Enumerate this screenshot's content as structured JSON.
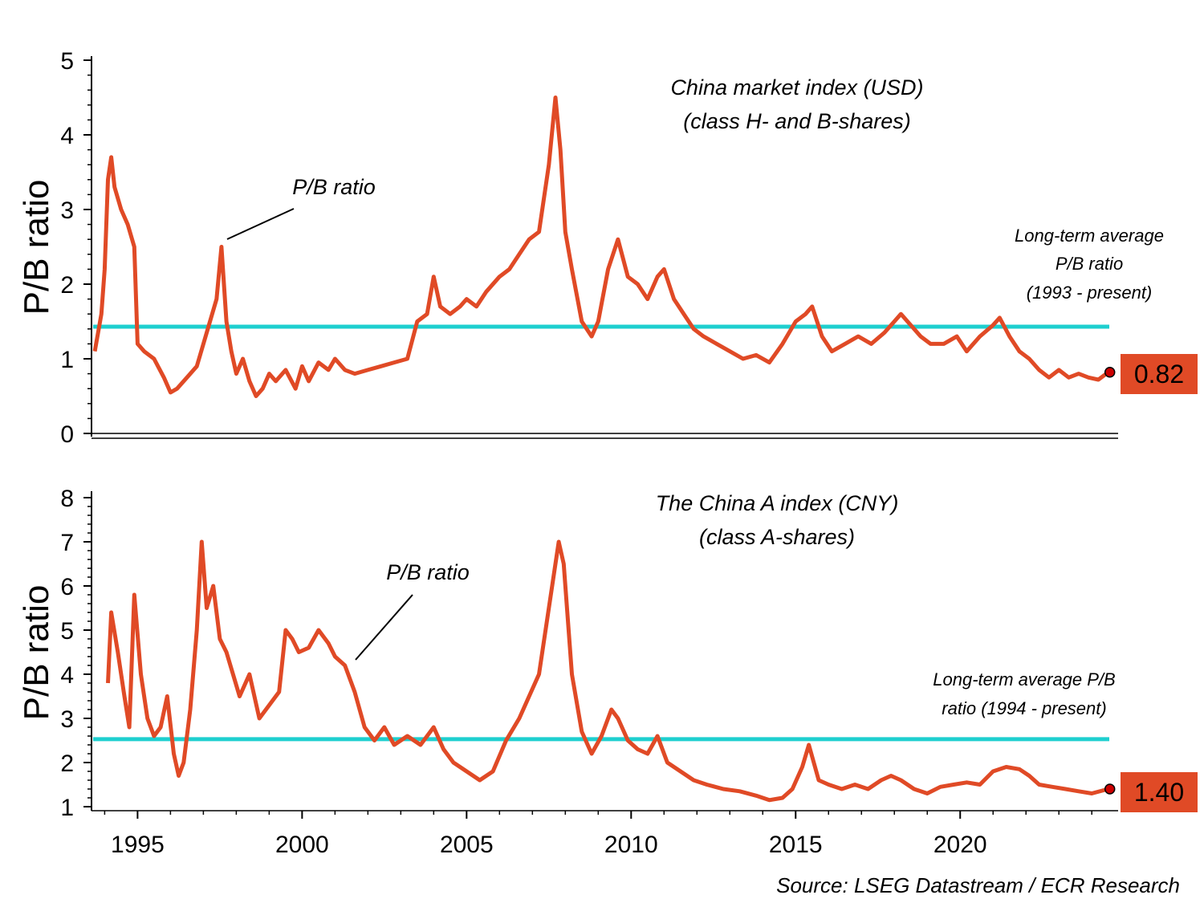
{
  "colors": {
    "series": "#e04a26",
    "average": "#1ecfcf",
    "axis": "#000000",
    "marker": "#cc0000"
  },
  "source": "Source: LSEG Datastream / ECR Research",
  "chart_data": [
    {
      "type": "line",
      "title_lines": [
        "China market index (USD)",
        "(class H- and B-shares)"
      ],
      "ylabel": "P/B ratio",
      "ylim": [
        0,
        5
      ],
      "yticks": [
        "0",
        "1",
        "2",
        "3",
        "4",
        "5"
      ],
      "xlim": [
        1993.6,
        2024.8
      ],
      "xticks": [
        "1995",
        "2000",
        "2005",
        "2010",
        "2015",
        "2020"
      ],
      "series": [
        {
          "name": "P/B ratio",
          "x": [
            1993.7,
            1993.9,
            1994.0,
            1994.1,
            1994.2,
            1994.3,
            1994.5,
            1994.7,
            1994.9,
            1995.0,
            1995.2,
            1995.5,
            1995.8,
            1996.0,
            1996.2,
            1996.5,
            1996.8,
            1997.0,
            1997.2,
            1997.4,
            1997.55,
            1997.7,
            1997.85,
            1998.0,
            1998.2,
            1998.4,
            1998.6,
            1998.8,
            1999.0,
            1999.2,
            1999.5,
            1999.8,
            2000.0,
            2000.2,
            2000.5,
            2000.8,
            2001.0,
            2001.3,
            2001.6,
            2002.0,
            2002.4,
            2002.8,
            2003.2,
            2003.5,
            2003.8,
            2004.0,
            2004.2,
            2004.5,
            2004.8,
            2005.0,
            2005.3,
            2005.6,
            2006.0,
            2006.3,
            2006.6,
            2006.9,
            2007.2,
            2007.5,
            2007.7,
            2007.85,
            2008.0,
            2008.2,
            2008.5,
            2008.8,
            2009.0,
            2009.3,
            2009.6,
            2009.9,
            2010.2,
            2010.5,
            2010.8,
            2011.0,
            2011.3,
            2011.6,
            2011.9,
            2012.2,
            2012.6,
            2013.0,
            2013.4,
            2013.8,
            2014.2,
            2014.6,
            2015.0,
            2015.3,
            2015.5,
            2015.8,
            2016.1,
            2016.5,
            2016.9,
            2017.3,
            2017.7,
            2018.0,
            2018.2,
            2018.5,
            2018.8,
            2019.1,
            2019.5,
            2019.9,
            2020.2,
            2020.6,
            2021.0,
            2021.2,
            2021.5,
            2021.8,
            2022.1,
            2022.4,
            2022.7,
            2023.0,
            2023.3,
            2023.6,
            2023.9,
            2024.2,
            2024.5
          ],
          "y": [
            1.1,
            1.6,
            2.2,
            3.4,
            3.7,
            3.3,
            3.0,
            2.8,
            2.5,
            1.2,
            1.1,
            1.0,
            0.75,
            0.55,
            0.6,
            0.75,
            0.9,
            1.2,
            1.5,
            1.8,
            2.5,
            1.5,
            1.1,
            0.8,
            1.0,
            0.7,
            0.5,
            0.6,
            0.8,
            0.7,
            0.85,
            0.6,
            0.9,
            0.7,
            0.95,
            0.85,
            1.0,
            0.85,
            0.8,
            0.85,
            0.9,
            0.95,
            1.0,
            1.5,
            1.6,
            2.1,
            1.7,
            1.6,
            1.7,
            1.8,
            1.7,
            1.9,
            2.1,
            2.2,
            2.4,
            2.6,
            2.7,
            3.6,
            4.5,
            3.8,
            2.7,
            2.2,
            1.5,
            1.3,
            1.5,
            2.2,
            2.6,
            2.1,
            2.0,
            1.8,
            2.1,
            2.2,
            1.8,
            1.6,
            1.4,
            1.3,
            1.2,
            1.1,
            1.0,
            1.05,
            0.95,
            1.2,
            1.5,
            1.6,
            1.7,
            1.3,
            1.1,
            1.2,
            1.3,
            1.2,
            1.35,
            1.5,
            1.6,
            1.45,
            1.3,
            1.2,
            1.2,
            1.3,
            1.1,
            1.3,
            1.45,
            1.55,
            1.3,
            1.1,
            1.0,
            0.85,
            0.75,
            0.85,
            0.75,
            0.8,
            0.75,
            0.72,
            0.82
          ]
        }
      ],
      "average": {
        "value": 1.43,
        "label_lines": [
          "Long-term average",
          "P/B ratio",
          "(1993 - present)"
        ]
      },
      "annotation": "P/B ratio",
      "last_value": "0.82"
    },
    {
      "type": "line",
      "title_lines": [
        "The China A index (CNY)",
        "(class A-shares)"
      ],
      "ylabel": "P/B ratio",
      "ylim": [
        1,
        8
      ],
      "yticks": [
        "1",
        "2",
        "3",
        "4",
        "5",
        "6",
        "7",
        "8"
      ],
      "xlim": [
        1993.6,
        2024.8
      ],
      "xticks": [
        "1995",
        "2000",
        "2005",
        "2010",
        "2015",
        "2020"
      ],
      "series": [
        {
          "name": "P/B ratio",
          "x": [
            1994.1,
            1994.2,
            1994.4,
            1994.6,
            1994.75,
            1994.9,
            1995.1,
            1995.3,
            1995.5,
            1995.7,
            1995.9,
            1996.1,
            1996.25,
            1996.4,
            1996.6,
            1996.8,
            1996.95,
            1997.1,
            1997.3,
            1997.5,
            1997.7,
            1997.9,
            1998.1,
            1998.4,
            1998.7,
            1999.0,
            1999.3,
            1999.5,
            1999.7,
            1999.9,
            2000.2,
            2000.5,
            2000.8,
            2001.0,
            2001.3,
            2001.6,
            2001.9,
            2002.2,
            2002.5,
            2002.8,
            2003.2,
            2003.6,
            2004.0,
            2004.3,
            2004.6,
            2005.0,
            2005.4,
            2005.8,
            2006.2,
            2006.6,
            2006.9,
            2007.2,
            2007.5,
            2007.8,
            2007.95,
            2008.2,
            2008.5,
            2008.8,
            2009.1,
            2009.4,
            2009.6,
            2009.9,
            2010.2,
            2010.5,
            2010.8,
            2011.1,
            2011.5,
            2011.9,
            2012.3,
            2012.8,
            2013.3,
            2013.8,
            2014.2,
            2014.6,
            2014.9,
            2015.2,
            2015.4,
            2015.7,
            2016.0,
            2016.4,
            2016.8,
            2017.2,
            2017.6,
            2017.9,
            2018.2,
            2018.6,
            2019.0,
            2019.4,
            2019.8,
            2020.2,
            2020.6,
            2021.0,
            2021.4,
            2021.8,
            2022.1,
            2022.4,
            2022.8,
            2023.2,
            2023.6,
            2024.0,
            2024.5
          ],
          "y": [
            3.8,
            5.4,
            4.5,
            3.5,
            2.8,
            5.8,
            4.0,
            3.0,
            2.6,
            2.8,
            3.5,
            2.2,
            1.7,
            2.0,
            3.2,
            5.0,
            7.0,
            5.5,
            6.0,
            4.8,
            4.5,
            4.0,
            3.5,
            4.0,
            3.0,
            3.3,
            3.6,
            5.0,
            4.8,
            4.5,
            4.6,
            5.0,
            4.7,
            4.4,
            4.2,
            3.6,
            2.8,
            2.5,
            2.8,
            2.4,
            2.6,
            2.4,
            2.8,
            2.3,
            2.0,
            1.8,
            1.6,
            1.8,
            2.5,
            3.0,
            3.5,
            4.0,
            5.5,
            7.0,
            6.5,
            4.0,
            2.7,
            2.2,
            2.6,
            3.2,
            3.0,
            2.5,
            2.3,
            2.2,
            2.6,
            2.0,
            1.8,
            1.6,
            1.5,
            1.4,
            1.35,
            1.25,
            1.15,
            1.2,
            1.4,
            1.9,
            2.4,
            1.6,
            1.5,
            1.4,
            1.5,
            1.4,
            1.6,
            1.7,
            1.6,
            1.4,
            1.3,
            1.45,
            1.5,
            1.55,
            1.5,
            1.8,
            1.9,
            1.85,
            1.7,
            1.5,
            1.45,
            1.4,
            1.35,
            1.3,
            1.4
          ]
        }
      ],
      "average": {
        "value": 2.53,
        "label_lines": [
          "Long-term average P/B",
          "ratio (1994 - present)"
        ]
      },
      "annotation": "P/B ratio",
      "last_value": "1.40"
    }
  ]
}
